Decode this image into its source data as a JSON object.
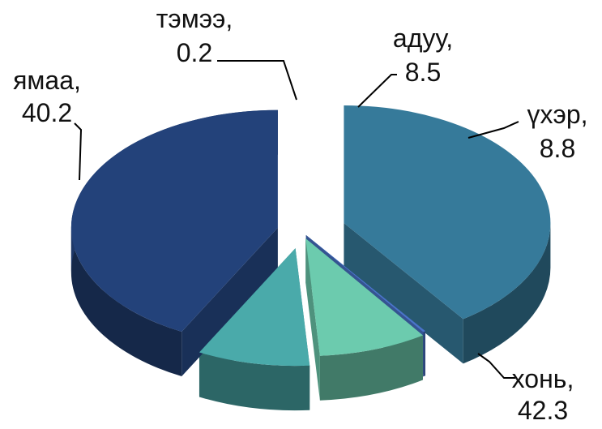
{
  "chart_data": {
    "type": "pie",
    "style": "3d-exploded",
    "title": "",
    "slices": [
      {
        "label": "ямаа",
        "value": 40.2,
        "value_text": "40.2",
        "color": "#367A9A"
      },
      {
        "label": "тэмээ",
        "value": 0.2,
        "value_text": "0.2",
        "color": "#4A74C9"
      },
      {
        "label": "адуу",
        "value": 8.5,
        "value_text": "8.5",
        "color": "#6CCBAE"
      },
      {
        "label": "үхэр",
        "value": 8.8,
        "value_text": "8.8",
        "color": "#4AAAAA"
      },
      {
        "label": "хонь",
        "value": 42.3,
        "value_text": "42.3",
        "color": "#23427A"
      }
    ]
  }
}
